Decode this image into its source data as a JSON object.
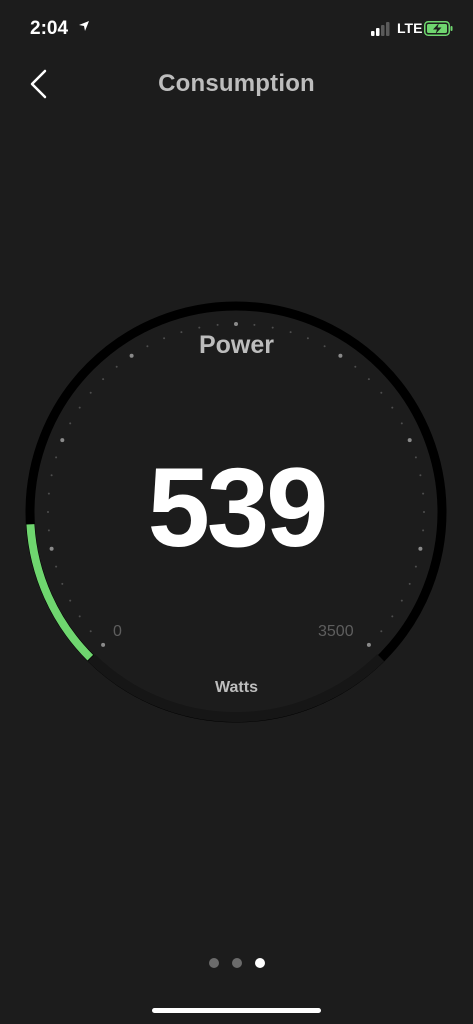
{
  "status_bar": {
    "time": "2:04",
    "network": "LTE"
  },
  "nav": {
    "title": "Consumption"
  },
  "gauge": {
    "label": "Power",
    "value": "539",
    "unit": "Watts",
    "min": "0",
    "max": "3500",
    "fraction": 0.154
  },
  "colors": {
    "accent": "#6fd66f",
    "background": "#1c1c1c",
    "track": "#000000"
  },
  "pager": {
    "count": 3,
    "active": 2
  }
}
